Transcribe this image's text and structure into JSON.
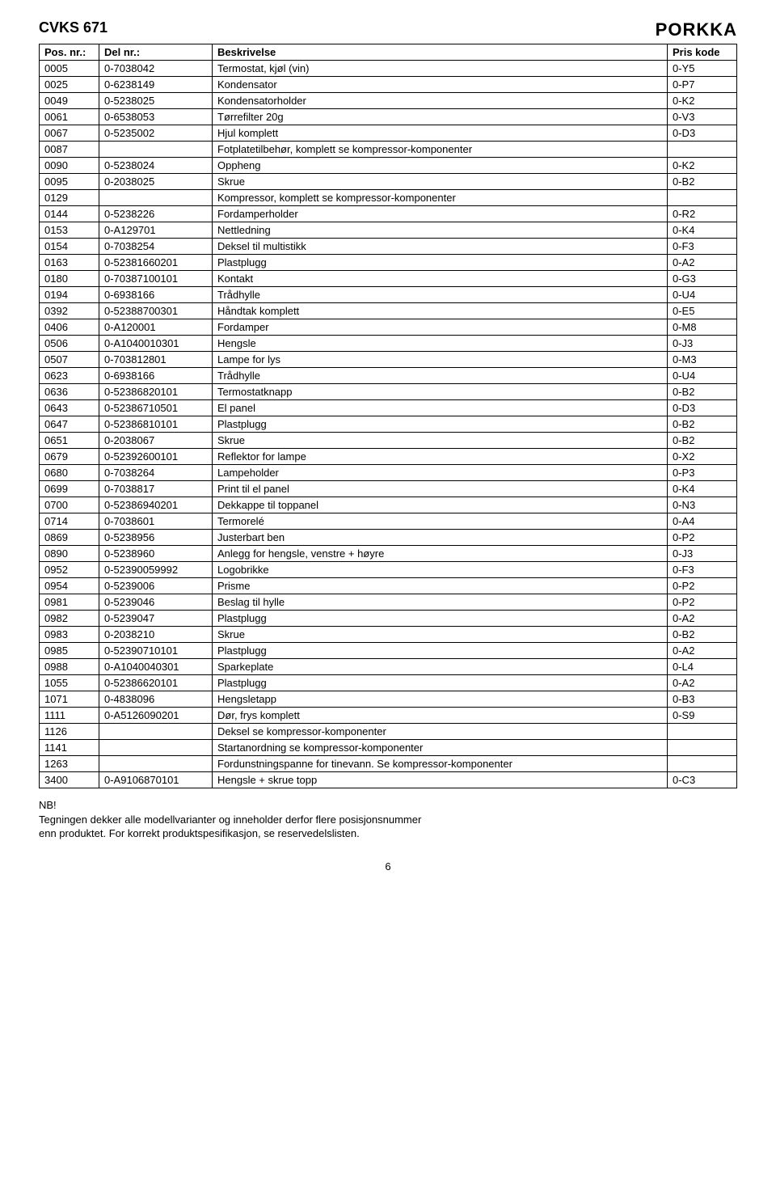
{
  "header": {
    "title": "CVKS 671",
    "logo": "PORKKA"
  },
  "table": {
    "columns": [
      {
        "label": "Pos. nr.:",
        "class": "col-pos"
      },
      {
        "label": "Del nr.:",
        "class": "col-del"
      },
      {
        "label": "Beskrivelse",
        "class": "col-besk"
      },
      {
        "label": "Pris kode",
        "class": "col-pris"
      }
    ],
    "rows": [
      [
        "0005",
        "0-7038042",
        "Termostat, kjøl (vin)",
        "0-Y5"
      ],
      [
        "0025",
        "0-6238149",
        "Kondensator",
        "0-P7"
      ],
      [
        "0049",
        "0-5238025",
        "Kondensatorholder",
        "0-K2"
      ],
      [
        "0061",
        "0-6538053",
        "Tørrefilter 20g",
        "0-V3"
      ],
      [
        "0067",
        "0-5235002",
        "Hjul komplett",
        "0-D3"
      ],
      [
        "0087",
        "",
        "Fotplatetilbehør, komplett se kompressor-komponenter",
        ""
      ],
      [
        "0090",
        "0-5238024",
        "Oppheng",
        "0-K2"
      ],
      [
        "0095",
        "0-2038025",
        "Skrue",
        "0-B2"
      ],
      [
        "0129",
        "",
        "Kompressor, komplett se kompressor-komponenter",
        ""
      ],
      [
        "0144",
        "0-5238226",
        "Fordamperholder",
        "0-R2"
      ],
      [
        "0153",
        "0-A129701",
        "Nettledning",
        "0-K4"
      ],
      [
        "0154",
        "0-7038254",
        "Deksel til multistikk",
        "0-F3"
      ],
      [
        "0163",
        "0-52381660201",
        "Plastplugg",
        "0-A2"
      ],
      [
        "0180",
        "0-70387100101",
        "Kontakt",
        "0-G3"
      ],
      [
        "0194",
        "0-6938166",
        "Trådhylle",
        "0-U4"
      ],
      [
        "0392",
        "0-52388700301",
        "Håndtak komplett",
        "0-E5"
      ],
      [
        "0406",
        "0-A120001",
        "Fordamper",
        "0-M8"
      ],
      [
        "0506",
        "0-A1040010301",
        "Hengsle",
        "0-J3"
      ],
      [
        "0507",
        "0-703812801",
        "Lampe for lys",
        "0-M3"
      ],
      [
        "0623",
        "0-6938166",
        "Trådhylle",
        "0-U4"
      ],
      [
        "0636",
        "0-52386820101",
        "Termostatknapp",
        "0-B2"
      ],
      [
        "0643",
        "0-52386710501",
        "El panel",
        "0-D3"
      ],
      [
        "0647",
        "0-52386810101",
        "Plastplugg",
        "0-B2"
      ],
      [
        "0651",
        "0-2038067",
        "Skrue",
        "0-B2"
      ],
      [
        "0679",
        "0-52392600101",
        "Reflektor for lampe",
        "0-X2"
      ],
      [
        "0680",
        "0-7038264",
        "Lampeholder",
        "0-P3"
      ],
      [
        "0699",
        "0-7038817",
        "Print til el panel",
        "0-K4"
      ],
      [
        "0700",
        "0-52386940201",
        "Dekkappe til toppanel",
        "0-N3"
      ],
      [
        "0714",
        "0-7038601",
        "Termorelé",
        "0-A4"
      ],
      [
        "0869",
        "0-5238956",
        "Justerbart ben",
        "0-P2"
      ],
      [
        "0890",
        "0-5238960",
        "Anlegg for hengsle, venstre + høyre",
        "0-J3"
      ],
      [
        "0952",
        "0-52390059992",
        "Logobrikke",
        "0-F3"
      ],
      [
        "0954",
        "0-5239006",
        "Prisme",
        "0-P2"
      ],
      [
        "0981",
        "0-5239046",
        "Beslag til hylle",
        "0-P2"
      ],
      [
        "0982",
        "0-5239047",
        "Plastplugg",
        "0-A2"
      ],
      [
        "0983",
        "0-2038210",
        "Skrue",
        "0-B2"
      ],
      [
        "0985",
        "0-52390710101",
        "Plastplugg",
        "0-A2"
      ],
      [
        "0988",
        "0-A1040040301",
        "Sparkeplate",
        "0-L4"
      ],
      [
        "1055",
        "0-52386620101",
        "Plastplugg",
        "0-A2"
      ],
      [
        "1071",
        "0-4838096",
        "Hengsletapp",
        "0-B3"
      ],
      [
        "1111",
        "0-A5126090201",
        "Dør, frys komplett",
        "0-S9"
      ],
      [
        "1126",
        "",
        "Deksel se kompressor-komponenter",
        ""
      ],
      [
        "1141",
        "",
        "Startanordning se kompressor-komponenter",
        ""
      ],
      [
        "1263",
        "",
        "Fordunstningspanne for tinevann. Se kompressor-komponenter",
        ""
      ],
      [
        "3400",
        "0-A9106870101",
        "Hengsle + skrue topp",
        "0-C3"
      ]
    ]
  },
  "footnote": {
    "nb": "NB!",
    "line1": "Tegningen dekker alle modellvarianter og inneholder derfor flere posisjonsnummer",
    "line2": "enn produktet. For korrekt produktspesifikasjon, se reservedelslisten."
  },
  "pageNumber": "6"
}
